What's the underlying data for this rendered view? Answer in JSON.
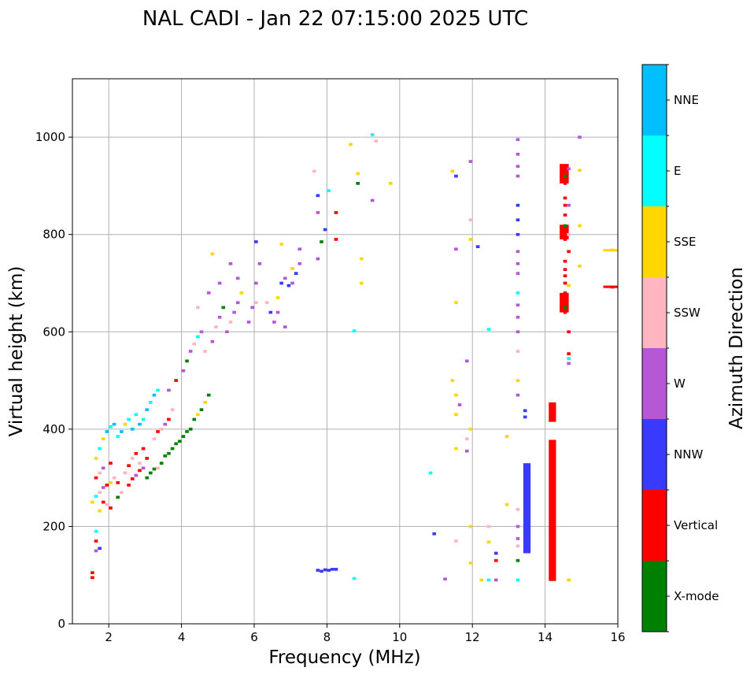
{
  "chart_data": {
    "type": "scatter",
    "title": "NAL CADI - Jan 22 07:15:00 2025 UTC",
    "xlabel": "Frequency (MHz)",
    "ylabel": "Virtual height (km)",
    "xlim": [
      1,
      16
    ],
    "ylim": [
      0,
      1120
    ],
    "xticks": [
      2,
      4,
      6,
      8,
      10,
      12,
      14,
      16
    ],
    "yticks": [
      0,
      200,
      400,
      600,
      800,
      1000
    ],
    "grid": true,
    "colorbar": {
      "label": "Azimuth Direction",
      "categories": [
        {
          "name": "X-mode",
          "color": "#008000"
        },
        {
          "name": "Vertical",
          "color": "#ff0000"
        },
        {
          "name": "NNW",
          "color": "#3a3aff"
        },
        {
          "name": "W",
          "color": "#b657d6"
        },
        {
          "name": "SSW",
          "color": "#ffb6c1"
        },
        {
          "name": "SSE",
          "color": "#ffd700"
        },
        {
          "name": "E",
          "color": "#00ffff"
        },
        {
          "name": "NNE",
          "color": "#00bfff"
        }
      ]
    },
    "bins": {
      "freq_width": 0.1,
      "height_height": 6
    },
    "points": [
      [
        1.5,
        95,
        "Vertical"
      ],
      [
        1.5,
        105,
        "Vertical"
      ],
      [
        1.6,
        150,
        "W"
      ],
      [
        1.6,
        170,
        "Vertical"
      ],
      [
        1.7,
        155,
        "NNW"
      ],
      [
        1.6,
        190,
        "E"
      ],
      [
        1.5,
        250,
        "SSE"
      ],
      [
        1.6,
        262,
        "E"
      ],
      [
        1.7,
        270,
        "SSW"
      ],
      [
        1.8,
        280,
        "W"
      ],
      [
        1.9,
        285,
        "Vertical"
      ],
      [
        2.0,
        290,
        "SSE"
      ],
      [
        1.6,
        300,
        "Vertical"
      ],
      [
        1.7,
        310,
        "SSW"
      ],
      [
        1.8,
        320,
        "W"
      ],
      [
        2.0,
        330,
        "Vertical"
      ],
      [
        2.1,
        300,
        "SSW"
      ],
      [
        2.2,
        290,
        "Vertical"
      ],
      [
        1.8,
        250,
        "Vertical"
      ],
      [
        1.9,
        245,
        "SSW"
      ],
      [
        2.0,
        238,
        "Vertical"
      ],
      [
        1.7,
        232,
        "SSE"
      ],
      [
        2.2,
        260,
        "X-mode"
      ],
      [
        2.3,
        270,
        "SSW"
      ],
      [
        1.6,
        340,
        "SSE"
      ],
      [
        1.7,
        360,
        "E"
      ],
      [
        1.8,
        380,
        "SSE"
      ],
      [
        1.9,
        395,
        "NNE"
      ],
      [
        2.0,
        405,
        "E"
      ],
      [
        2.1,
        410,
        "NNE"
      ],
      [
        2.2,
        385,
        "E"
      ],
      [
        2.3,
        395,
        "NNE"
      ],
      [
        2.4,
        410,
        "SSE"
      ],
      [
        2.5,
        420,
        "E"
      ],
      [
        2.6,
        400,
        "NNE"
      ],
      [
        2.7,
        430,
        "E"
      ],
      [
        2.4,
        310,
        "SSW"
      ],
      [
        2.5,
        325,
        "Vertical"
      ],
      [
        2.6,
        340,
        "SSW"
      ],
      [
        2.7,
        350,
        "Vertical"
      ],
      [
        2.8,
        330,
        "SSW"
      ],
      [
        2.9,
        360,
        "Vertical"
      ],
      [
        2.5,
        285,
        "Vertical"
      ],
      [
        2.6,
        298,
        "Vertical"
      ],
      [
        2.7,
        305,
        "W"
      ],
      [
        2.8,
        315,
        "Vertical"
      ],
      [
        2.9,
        320,
        "W"
      ],
      [
        3.0,
        340,
        "Vertical"
      ],
      [
        2.8,
        410,
        "NNE"
      ],
      [
        2.9,
        420,
        "E"
      ],
      [
        3.0,
        440,
        "NNE"
      ],
      [
        3.1,
        455,
        "E"
      ],
      [
        3.2,
        470,
        "NNE"
      ],
      [
        3.3,
        480,
        "E"
      ],
      [
        3.0,
        300,
        "X-mode"
      ],
      [
        3.1,
        310,
        "X-mode"
      ],
      [
        3.2,
        318,
        "X-mode"
      ],
      [
        3.3,
        320,
        "SSW"
      ],
      [
        3.4,
        330,
        "X-mode"
      ],
      [
        3.5,
        345,
        "X-mode"
      ],
      [
        3.2,
        380,
        "SSW"
      ],
      [
        3.3,
        395,
        "Vertical"
      ],
      [
        3.4,
        400,
        "SSW"
      ],
      [
        3.5,
        410,
        "W"
      ],
      [
        3.6,
        420,
        "Vertical"
      ],
      [
        3.7,
        440,
        "SSW"
      ],
      [
        3.6,
        350,
        "X-mode"
      ],
      [
        3.7,
        360,
        "X-mode"
      ],
      [
        3.8,
        370,
        "X-mode"
      ],
      [
        3.9,
        375,
        "X-mode"
      ],
      [
        4.0,
        385,
        "X-mode"
      ],
      [
        4.1,
        395,
        "X-mode"
      ],
      [
        4.2,
        400,
        "X-mode"
      ],
      [
        4.3,
        420,
        "X-mode"
      ],
      [
        4.4,
        430,
        "SSE"
      ],
      [
        4.5,
        440,
        "X-mode"
      ],
      [
        4.6,
        455,
        "SSE"
      ],
      [
        4.7,
        470,
        "X-mode"
      ],
      [
        3.6,
        480,
        "W"
      ],
      [
        3.8,
        500,
        "Vertical"
      ],
      [
        4.0,
        520,
        "W"
      ],
      [
        4.1,
        540,
        "X-mode"
      ],
      [
        4.2,
        560,
        "W"
      ],
      [
        4.3,
        575,
        "SSW"
      ],
      [
        4.4,
        590,
        "E"
      ],
      [
        4.5,
        600,
        "W"
      ],
      [
        4.6,
        560,
        "SSW"
      ],
      [
        4.8,
        580,
        "W"
      ],
      [
        4.9,
        610,
        "SSW"
      ],
      [
        5.0,
        630,
        "W"
      ],
      [
        5.1,
        650,
        "X-mode"
      ],
      [
        5.2,
        600,
        "W"
      ],
      [
        5.3,
        620,
        "SSW"
      ],
      [
        5.4,
        640,
        "W"
      ],
      [
        5.5,
        660,
        "W"
      ],
      [
        5.6,
        680,
        "SSE"
      ],
      [
        5.8,
        620,
        "W"
      ],
      [
        5.9,
        650,
        "W"
      ],
      [
        6.0,
        660,
        "SSW"
      ],
      [
        6.0,
        700,
        "W"
      ],
      [
        6.1,
        740,
        "W"
      ],
      [
        6.0,
        785,
        "NNW"
      ],
      [
        5.0,
        700,
        "W"
      ],
      [
        5.3,
        740,
        "W"
      ],
      [
        4.8,
        760,
        "SSE"
      ],
      [
        5.5,
        710,
        "W"
      ],
      [
        4.7,
        680,
        "W"
      ],
      [
        4.4,
        650,
        "SSW"
      ],
      [
        6.3,
        660,
        "SSW"
      ],
      [
        6.4,
        640,
        "NNW"
      ],
      [
        6.5,
        620,
        "W"
      ],
      [
        6.6,
        670,
        "SSE"
      ],
      [
        6.7,
        700,
        "NNW"
      ],
      [
        6.8,
        710,
        "W"
      ],
      [
        6.9,
        695,
        "NNW"
      ],
      [
        7.0,
        700,
        "W"
      ],
      [
        7.1,
        720,
        "NNW"
      ],
      [
        7.2,
        740,
        "W"
      ],
      [
        7.2,
        770,
        "W"
      ],
      [
        7.0,
        730,
        "SSE"
      ],
      [
        6.7,
        780,
        "SSE"
      ],
      [
        6.6,
        640,
        "W"
      ],
      [
        6.8,
        610,
        "W"
      ],
      [
        7.7,
        110,
        "NNW"
      ],
      [
        7.8,
        108,
        "NNW"
      ],
      [
        7.9,
        111,
        "NNW"
      ],
      [
        8.0,
        110,
        "NNW"
      ],
      [
        8.1,
        112,
        "NNW"
      ],
      [
        8.2,
        112,
        "NNW"
      ],
      [
        7.7,
        750,
        "W"
      ],
      [
        7.8,
        785,
        "X-mode"
      ],
      [
        7.9,
        810,
        "NNW"
      ],
      [
        8.2,
        790,
        "Vertical"
      ],
      [
        8.2,
        845,
        "Vertical"
      ],
      [
        7.7,
        880,
        "NNW"
      ],
      [
        7.6,
        930,
        "SSW"
      ],
      [
        7.7,
        845,
        "W"
      ],
      [
        8.0,
        890,
        "E"
      ],
      [
        8.6,
        985,
        "SSE"
      ],
      [
        8.8,
        925,
        "SSE"
      ],
      [
        8.8,
        905,
        "X-mode"
      ],
      [
        8.7,
        602,
        "E"
      ],
      [
        8.7,
        93,
        "E"
      ],
      [
        8.9,
        750,
        "SSE"
      ],
      [
        8.9,
        700,
        "SSE"
      ],
      [
        9.2,
        1005,
        "E"
      ],
      [
        9.3,
        992,
        "SSW"
      ],
      [
        9.2,
        870,
        "W"
      ],
      [
        9.7,
        905,
        "SSE"
      ],
      [
        10.8,
        310,
        "E"
      ],
      [
        10.9,
        185,
        "NNW"
      ],
      [
        11.2,
        92,
        "W"
      ],
      [
        11.4,
        930,
        "SSE"
      ],
      [
        11.5,
        920,
        "NNW"
      ],
      [
        11.5,
        770,
        "W"
      ],
      [
        11.5,
        660,
        "SSE"
      ],
      [
        11.4,
        500,
        "SSE"
      ],
      [
        11.5,
        470,
        "SSE"
      ],
      [
        11.6,
        450,
        "W"
      ],
      [
        11.5,
        430,
        "SSE"
      ],
      [
        11.5,
        360,
        "SSE"
      ],
      [
        11.5,
        170,
        "SSW"
      ],
      [
        11.8,
        540,
        "W"
      ],
      [
        11.9,
        400,
        "SSE"
      ],
      [
        11.8,
        380,
        "SSW"
      ],
      [
        11.8,
        355,
        "W"
      ],
      [
        11.9,
        950,
        "W"
      ],
      [
        11.9,
        830,
        "SSW"
      ],
      [
        11.9,
        790,
        "SSE"
      ],
      [
        12.1,
        775,
        "NNW"
      ],
      [
        11.9,
        200,
        "SSE"
      ],
      [
        11.9,
        125,
        "SSE"
      ],
      [
        12.2,
        90,
        "SSE"
      ],
      [
        12.4,
        90,
        "E"
      ],
      [
        12.6,
        90,
        "W"
      ],
      [
        12.4,
        605,
        "E"
      ],
      [
        12.4,
        200,
        "SSW"
      ],
      [
        12.4,
        168,
        "SSE"
      ],
      [
        12.6,
        145,
        "NNW"
      ],
      [
        12.6,
        130,
        "Vertical"
      ],
      [
        12.9,
        385,
        "SSE"
      ],
      [
        12.9,
        245,
        "SSE"
      ],
      [
        13.2,
        995,
        "W"
      ],
      [
        13.2,
        965,
        "W"
      ],
      [
        13.2,
        940,
        "W"
      ],
      [
        13.2,
        920,
        "W"
      ],
      [
        13.2,
        860,
        "NNW"
      ],
      [
        13.2,
        830,
        "NNW"
      ],
      [
        13.2,
        800,
        "NNW"
      ],
      [
        13.2,
        765,
        "W"
      ],
      [
        13.2,
        740,
        "W"
      ],
      [
        13.2,
        720,
        "W"
      ],
      [
        13.2,
        680,
        "E"
      ],
      [
        13.2,
        655,
        "W"
      ],
      [
        13.2,
        630,
        "W"
      ],
      [
        13.2,
        600,
        "W"
      ],
      [
        13.2,
        560,
        "SSW"
      ],
      [
        13.2,
        500,
        "SSE"
      ],
      [
        13.2,
        470,
        "W"
      ],
      [
        13.2,
        235,
        "SSW"
      ],
      [
        13.2,
        200,
        "W"
      ],
      [
        13.2,
        175,
        "W"
      ],
      [
        13.2,
        160,
        "SSW"
      ],
      [
        13.2,
        130,
        "X-mode"
      ],
      [
        13.2,
        90,
        "E"
      ],
      [
        13.4,
        438,
        "NNW"
      ],
      [
        13.4,
        425,
        "NNW"
      ],
      [
        14.5,
        935,
        "Vertical"
      ],
      [
        14.5,
        920,
        "X-mode"
      ],
      [
        14.5,
        905,
        "Vertical"
      ],
      [
        14.5,
        875,
        "Vertical"
      ],
      [
        14.5,
        860,
        "Vertical"
      ],
      [
        14.5,
        840,
        "Vertical"
      ],
      [
        14.5,
        818,
        "X-mode"
      ],
      [
        14.5,
        805,
        "Vertical"
      ],
      [
        14.5,
        790,
        "Vertical"
      ],
      [
        14.5,
        745,
        "Vertical"
      ],
      [
        14.5,
        728,
        "Vertical"
      ],
      [
        14.5,
        715,
        "Vertical"
      ],
      [
        14.5,
        700,
        "Vertical"
      ],
      [
        14.5,
        680,
        "Vertical"
      ],
      [
        14.5,
        665,
        "Vertical"
      ],
      [
        14.5,
        650,
        "X-mode"
      ],
      [
        14.5,
        640,
        "Vertical"
      ],
      [
        14.6,
        935,
        "W"
      ],
      [
        14.6,
        860,
        "W"
      ],
      [
        14.6,
        800,
        "SSW"
      ],
      [
        14.6,
        765,
        "Vertical"
      ],
      [
        14.6,
        695,
        "SSE"
      ],
      [
        14.6,
        600,
        "Vertical"
      ],
      [
        14.6,
        555,
        "Vertical"
      ],
      [
        14.6,
        545,
        "E"
      ],
      [
        14.6,
        535,
        "W"
      ],
      [
        14.6,
        90,
        "SSE"
      ],
      [
        14.9,
        932,
        "SSE"
      ],
      [
        14.9,
        818,
        "SSE"
      ],
      [
        14.9,
        735,
        "SSE"
      ],
      [
        14.9,
        1000,
        "W"
      ],
      [
        15.8,
        768,
        "SSE"
      ],
      [
        15.8,
        692,
        "Vertical"
      ]
    ],
    "bars": [
      {
        "freq": 13.4,
        "freq_end": 13.6,
        "from": 145,
        "to": 330,
        "azimuth": "NNW"
      },
      {
        "freq": 14.1,
        "freq_end": 14.3,
        "from": 415,
        "to": 455,
        "azimuth": "Vertical"
      },
      {
        "freq": 14.1,
        "freq_end": 14.3,
        "from": 88,
        "to": 378,
        "azimuth": "Vertical"
      },
      {
        "freq": 14.4,
        "freq_end": 14.65,
        "from": 640,
        "to": 680,
        "azimuth": "Vertical"
      },
      {
        "freq": 14.4,
        "freq_end": 14.65,
        "from": 790,
        "to": 820,
        "azimuth": "Vertical"
      },
      {
        "freq": 14.4,
        "freq_end": 14.65,
        "from": 905,
        "to": 945,
        "azimuth": "Vertical"
      },
      {
        "freq": 15.6,
        "freq_end": 16.0,
        "from": 690,
        "to": 695,
        "azimuth": "Vertical"
      },
      {
        "freq": 15.6,
        "freq_end": 16.0,
        "from": 765,
        "to": 770,
        "azimuth": "SSE"
      }
    ]
  }
}
